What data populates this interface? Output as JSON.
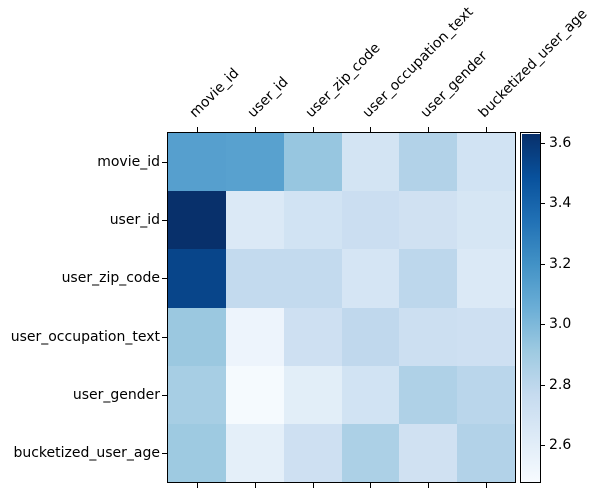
{
  "chart_data": {
    "type": "heatmap",
    "title": "",
    "x_labels": [
      "movie_id",
      "user_id",
      "user_zip_code",
      "user_occupation_text",
      "user_gender",
      "bucketized_user_age"
    ],
    "y_labels": [
      "movie_id",
      "user_id",
      "user_zip_code",
      "user_occupation_text",
      "user_gender",
      "bucketized_user_age"
    ],
    "matrix": [
      [
        3.13,
        3.12,
        2.93,
        2.69,
        2.84,
        2.7
      ],
      [
        3.63,
        2.64,
        2.7,
        2.74,
        2.71,
        2.67
      ],
      [
        3.54,
        2.78,
        2.78,
        2.68,
        2.8,
        2.64
      ],
      [
        2.92,
        2.54,
        2.72,
        2.79,
        2.73,
        2.72
      ],
      [
        2.88,
        2.49,
        2.6,
        2.7,
        2.85,
        2.81
      ],
      [
        2.91,
        2.59,
        2.72,
        2.86,
        2.71,
        2.84
      ]
    ],
    "colormap": "Blues",
    "vmin": 2.48,
    "vmax": 3.63,
    "colorbar_ticks": [
      "2.6",
      "2.8",
      "3.0",
      "3.2",
      "3.4",
      "3.6"
    ],
    "legend_position": "right-colorbar",
    "grid": false,
    "xlabel": "",
    "ylabel": ""
  }
}
